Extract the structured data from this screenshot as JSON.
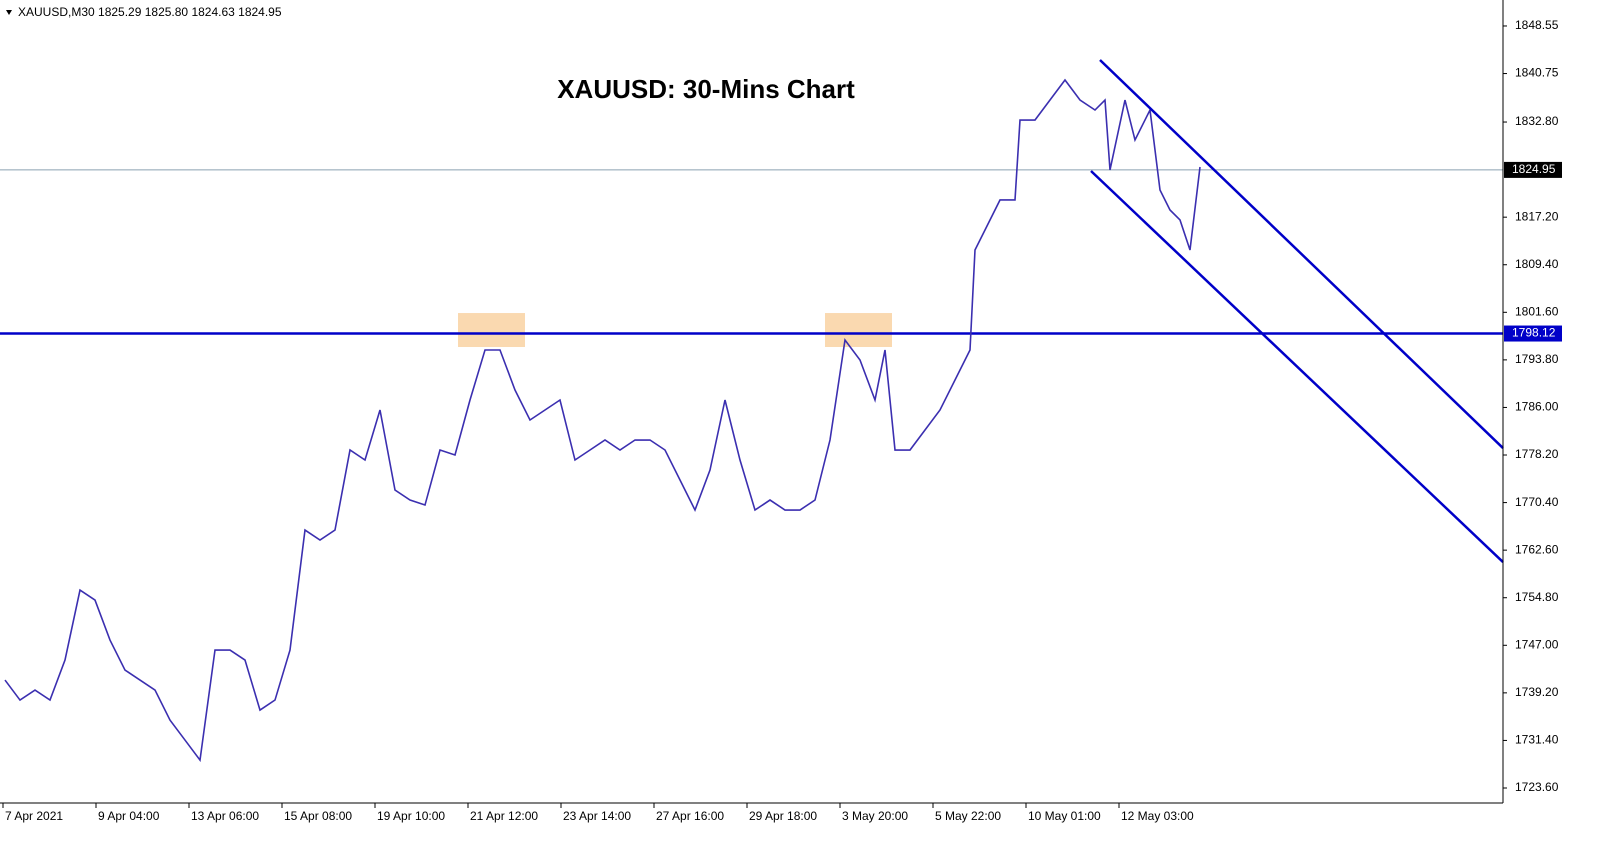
{
  "chart_data": {
    "type": "line",
    "header": "XAUUSD,M30  1825.29 1825.80 1824.63 1824.95",
    "title": "XAUUSD: 30-Mins Chart",
    "x": [
      2,
      17,
      32,
      47,
      62,
      77,
      92,
      107,
      122,
      137,
      152,
      167,
      182,
      197,
      212,
      227,
      242,
      257,
      272,
      287,
      302,
      317,
      332,
      347,
      362,
      377,
      392,
      407,
      422,
      437,
      452,
      467,
      482,
      497,
      512,
      527,
      542,
      557,
      572,
      587,
      602,
      617,
      632,
      647,
      662,
      677,
      692,
      707,
      722,
      737,
      752,
      767,
      782,
      797,
      812,
      827,
      842,
      857,
      872,
      882,
      892,
      907,
      922,
      937,
      952,
      967,
      972,
      982,
      997,
      1012,
      1017,
      1032,
      1047,
      1062,
      1077,
      1092,
      1102,
      1107,
      1122,
      1132,
      1147,
      1157,
      1167,
      1177,
      1187,
      1197
    ],
    "series": [
      {
        "name": "XAUUSD",
        "color": "#3b2fb0",
        "values": [
          1741.3,
          1738.02,
          1739.66,
          1738.02,
          1744.58,
          1756.06,
          1754.42,
          1747.86,
          1742.94,
          1741.3,
          1739.66,
          1734.74,
          1731.46,
          1728.18,
          1746.22,
          1746.22,
          1744.58,
          1736.38,
          1738.02,
          1746.22,
          1765.9,
          1764.26,
          1765.9,
          1779.02,
          1777.38,
          1785.58,
          1772.46,
          1770.82,
          1770.0,
          1779.02,
          1778.2,
          1787.22,
          1795.42,
          1795.42,
          1788.86,
          1783.94,
          1785.58,
          1787.22,
          1777.38,
          1779.02,
          1780.66,
          1779.02,
          1780.66,
          1780.66,
          1779.02,
          1774.1,
          1769.18,
          1775.74,
          1787.22,
          1777.38,
          1769.18,
          1770.82,
          1769.18,
          1769.18,
          1770.82,
          1780.66,
          1797.06,
          1793.78,
          1787.22,
          1795.42,
          1779.02,
          1779.02,
          1782.3,
          1785.58,
          1790.5,
          1795.42,
          1811.82,
          1815.1,
          1820.02,
          1820.02,
          1833.13,
          1833.13,
          1836.41,
          1839.69,
          1836.41,
          1834.77,
          1836.41,
          1824.94,
          1836.41,
          1829.86,
          1834.77,
          1821.66,
          1818.38,
          1816.74,
          1811.82,
          1825.43
        ]
      }
    ],
    "xlim": [
      -3,
      1500
    ],
    "xticks": [
      {
        "value": 0,
        "label": "7 Apr 2021"
      },
      {
        "value": 93,
        "label": "9 Apr 04:00"
      },
      {
        "value": 186,
        "label": "13 Apr 06:00"
      },
      {
        "value": 279,
        "label": "15 Apr 08:00"
      },
      {
        "value": 372,
        "label": "19 Apr 10:00"
      },
      {
        "value": 465,
        "label": "21 Apr 12:00"
      },
      {
        "value": 558,
        "label": "23 Apr 14:00"
      },
      {
        "value": 651,
        "label": "27 Apr 16:00"
      },
      {
        "value": 744,
        "label": "29 Apr 18:00"
      },
      {
        "value": 837,
        "label": "3 May 20:00"
      },
      {
        "value": 930,
        "label": "5 May 22:00"
      },
      {
        "value": 1023,
        "label": "10 May 01:00"
      },
      {
        "value": 1116,
        "label": "12 May 03:00"
      }
    ],
    "ylim": [
      1721.14,
      1852.81
    ],
    "yticks": [
      1848.55,
      1840.75,
      {
        "value": 1832.8,
        "label": "1832.80"
      },
      {
        "value": 1817.2,
        "label": "1817.20"
      },
      {
        "value": 1809.4,
        "label": "1809.40"
      },
      {
        "value": 1801.6,
        "label": "1801.60"
      },
      {
        "value": 1793.8,
        "label": "1793.80"
      },
      {
        "value": 1786,
        "label": "1786.00"
      },
      {
        "value": 1778.2,
        "label": "1778.20"
      },
      {
        "value": 1770.4,
        "label": "1770.40"
      },
      {
        "value": 1762.6,
        "label": "1762.60"
      },
      {
        "value": 1754.8,
        "label": "1754.80"
      },
      {
        "value": 1747,
        "label": "1747.00"
      },
      {
        "value": 1739.2,
        "label": "1739.20"
      },
      {
        "value": 1731.4,
        "label": "1731.40"
      },
      {
        "value": 1723.6,
        "label": "1723.60"
      }
    ],
    "price_line": 1824.95,
    "level": 1798.12,
    "level_color": "#0000c8",
    "zones": [
      {
        "x": [
          455,
          522
        ],
        "y": [
          1795.91,
          1801.48
        ]
      },
      {
        "x": [
          822,
          889
        ],
        "y": [
          1795.91,
          1801.48
        ]
      }
    ],
    "zone_color": "#fad9b0",
    "trend_lines": [
      {
        "x": [
          1097,
          1500
        ],
        "y": [
          1842.97,
          1779.34
        ]
      },
      {
        "x": [
          1088,
          1500
        ],
        "y": [
          1824.77,
          1760.65
        ]
      }
    ]
  }
}
